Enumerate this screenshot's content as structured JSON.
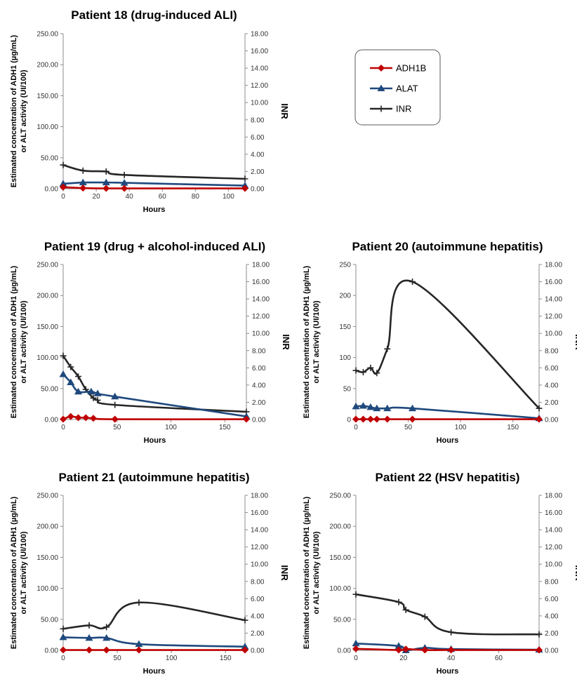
{
  "legend": [
    {
      "name": "ADH1B",
      "color": "#c00000",
      "marker": "diamond"
    },
    {
      "name": "ALAT",
      "color": "#1f497d",
      "marker": "triangle"
    },
    {
      "name": "INR",
      "color": "#262626",
      "marker": "plus"
    }
  ],
  "chart_data": [
    {
      "type": "line",
      "title": "Patient 18 (drug-induced ALI)",
      "xlabel": "Hours",
      "ylabel_line1": "Estimated concentration of ADH1 (µg/mL)",
      "ylabel_line2": "or ALT  activity (UI/100)",
      "y2label": "INR",
      "xlim": [
        0,
        110
      ],
      "xticks": [
        "0",
        "20",
        "40",
        "60",
        "80",
        "100"
      ],
      "ylim": [
        0,
        250
      ],
      "yticks": [
        "0.00",
        "50.00",
        "100.00",
        "150.00",
        "200.00",
        "250.00"
      ],
      "y2lim": [
        0,
        18
      ],
      "y2ticks": [
        "0.00",
        "2.00",
        "4.00",
        "6.00",
        "8.00",
        "10.00",
        "12.00",
        "14.00",
        "16.00",
        "18.00"
      ],
      "series": [
        {
          "name": "ADH1B",
          "axis": "left",
          "x": [
            0,
            12,
            26,
            37,
            110
          ],
          "y": [
            2.5,
            1,
            0.5,
            0.5,
            0.5
          ]
        },
        {
          "name": "ALAT",
          "axis": "left",
          "x": [
            0,
            12,
            26,
            37,
            110
          ],
          "y": [
            8,
            10,
            10,
            9.5,
            5
          ]
        },
        {
          "name": "INR",
          "axis": "right",
          "x": [
            0,
            12,
            26,
            37,
            110
          ],
          "y": [
            2.75,
            2.1,
            2.0,
            1.6,
            1.15
          ]
        }
      ]
    },
    {
      "type": "line",
      "title": "Patient 19 (drug + alcohol-induced ALI)",
      "xlabel": "Hours",
      "ylabel_line1": "Estimated concentration of ADH1 (µg/mL)",
      "ylabel_line2": "or ALT  activity (UI/100)",
      "y2label": "INR",
      "xlim": [
        0,
        170
      ],
      "xticks": [
        "0",
        "50",
        "100",
        "150"
      ],
      "ylim": [
        0,
        250
      ],
      "yticks": [
        "0.00",
        "50.00",
        "100.00",
        "150.00",
        "200.00",
        "250.00"
      ],
      "y2lim": [
        0,
        18
      ],
      "y2ticks": [
        "0.00",
        "2.00",
        "4.00",
        "6.00",
        "8.00",
        "10.00",
        "12.00",
        "14.00",
        "16.00",
        "18.00"
      ],
      "series": [
        {
          "name": "ADH1B",
          "axis": "left",
          "x": [
            0,
            7,
            14,
            21,
            28,
            48,
            170
          ],
          "y": [
            0.5,
            5,
            3,
            3,
            2,
            0.5,
            0.5
          ]
        },
        {
          "name": "ALAT",
          "axis": "left",
          "x": [
            0,
            7,
            14,
            26,
            32,
            48,
            170
          ],
          "y": [
            73,
            60,
            45,
            45,
            42,
            37,
            5
          ]
        },
        {
          "name": "INR",
          "axis": "right",
          "x": [
            0,
            7,
            14,
            21,
            28,
            32,
            48,
            170
          ],
          "y": [
            7.4,
            6.1,
            5.0,
            3.5,
            2.5,
            2.25,
            1.7,
            0.9
          ]
        }
      ]
    },
    {
      "type": "line",
      "title": "Patient 20 (autoimmune hepatitis)",
      "xlabel": "Hours",
      "ylabel_line1": "Estimated concentration of ADH1 (µg/mL)",
      "ylabel_line2": "or ALT  activity (UI/100)",
      "y2label": "INR",
      "xlim": [
        0,
        175
      ],
      "xticks": [
        "0",
        "50",
        "100",
        "150"
      ],
      "ylim": [
        0,
        250
      ],
      "yticks": [
        "0",
        "50",
        "100",
        "150",
        "200",
        "250"
      ],
      "y2lim": [
        0,
        18
      ],
      "y2ticks": [
        "0.00",
        "2.00",
        "4.00",
        "6.00",
        "8.00",
        "10.00",
        "12.00",
        "14.00",
        "16.00",
        "18.00"
      ],
      "series": [
        {
          "name": "ADH1B",
          "axis": "left",
          "x": [
            0,
            7,
            14,
            20,
            30,
            54,
            175
          ],
          "y": [
            0.5,
            0.5,
            0.5,
            0.5,
            0.5,
            0.5,
            0.5
          ]
        },
        {
          "name": "ALAT",
          "axis": "left",
          "x": [
            0,
            7,
            14,
            20,
            30,
            54,
            175
          ],
          "y": [
            21,
            22,
            20,
            18,
            18,
            18,
            2
          ]
        },
        {
          "name": "INR",
          "axis": "right",
          "x": [
            0,
            7,
            14,
            20,
            30,
            54,
            175
          ],
          "y": [
            5.7,
            5.5,
            6.0,
            5.4,
            8.2,
            16.0,
            1.3
          ]
        }
      ]
    },
    {
      "type": "line",
      "title": "Patient 21 (autoimmune hepatitis)",
      "xlabel": "Hours",
      "ylabel_line1": "Estimated concentration of ADH1 (µg/mL)",
      "ylabel_line2": "or ALT  activity (UI/100)",
      "y2label": "INR",
      "xlim": [
        0,
        168
      ],
      "xticks": [
        "0",
        "50",
        "100",
        "150"
      ],
      "ylim": [
        0,
        250
      ],
      "yticks": [
        "0.00",
        "50.00",
        "100.00",
        "150.00",
        "200.00",
        "250.00"
      ],
      "y2lim": [
        0,
        18
      ],
      "y2ticks": [
        "0.00",
        "2.00",
        "4.00",
        "6.00",
        "8.00",
        "10.00",
        "12.00",
        "14.00",
        "16.00",
        "18.00"
      ],
      "series": [
        {
          "name": "ADH1B",
          "axis": "left",
          "x": [
            0,
            24,
            40,
            70,
            168
          ],
          "y": [
            0.5,
            0.5,
            0.5,
            0.5,
            0.5
          ]
        },
        {
          "name": "ALAT",
          "axis": "left",
          "x": [
            0,
            24,
            40,
            70,
            168
          ],
          "y": [
            21,
            20,
            20,
            10,
            6
          ]
        },
        {
          "name": "INR",
          "axis": "right",
          "x": [
            0,
            24,
            40,
            70,
            168
          ],
          "y": [
            2.5,
            2.9,
            2.7,
            5.55,
            3.5
          ]
        }
      ]
    },
    {
      "type": "line",
      "title": "Patient 22 (HSV hepatitis)",
      "xlabel": "Hours",
      "ylabel_line1": "Estimated concentration of ADH1 (µg/mL)",
      "ylabel_line2": "or ALT  activity (UI/100)",
      "y2label": "INR",
      "xlim": [
        0,
        77
      ],
      "xticks": [
        "0",
        "20",
        "40",
        "60"
      ],
      "ylim": [
        0,
        250
      ],
      "yticks": [
        "0.00",
        "50.00",
        "100.00",
        "150.00",
        "200.00",
        "250.00"
      ],
      "y2lim": [
        0,
        18
      ],
      "y2ticks": [
        "0.00",
        "2.00",
        "4.00",
        "6.00",
        "8.00",
        "10.00",
        "12.00",
        "14.00",
        "16.00",
        "18.00"
      ],
      "series": [
        {
          "name": "ADH1B",
          "axis": "left",
          "x": [
            0,
            18,
            21,
            29,
            40,
            77
          ],
          "y": [
            2.5,
            0.5,
            2,
            0.5,
            0.5,
            0.5
          ]
        },
        {
          "name": "ALAT",
          "axis": "left",
          "x": [
            0,
            18,
            21,
            29,
            40,
            77
          ],
          "y": [
            11,
            7,
            0,
            4,
            2,
            1
          ]
        },
        {
          "name": "INR",
          "axis": "right",
          "x": [
            0,
            18,
            21,
            29,
            40,
            77
          ],
          "y": [
            6.5,
            5.6,
            4.7,
            3.9,
            2.1,
            1.85
          ]
        }
      ]
    }
  ]
}
